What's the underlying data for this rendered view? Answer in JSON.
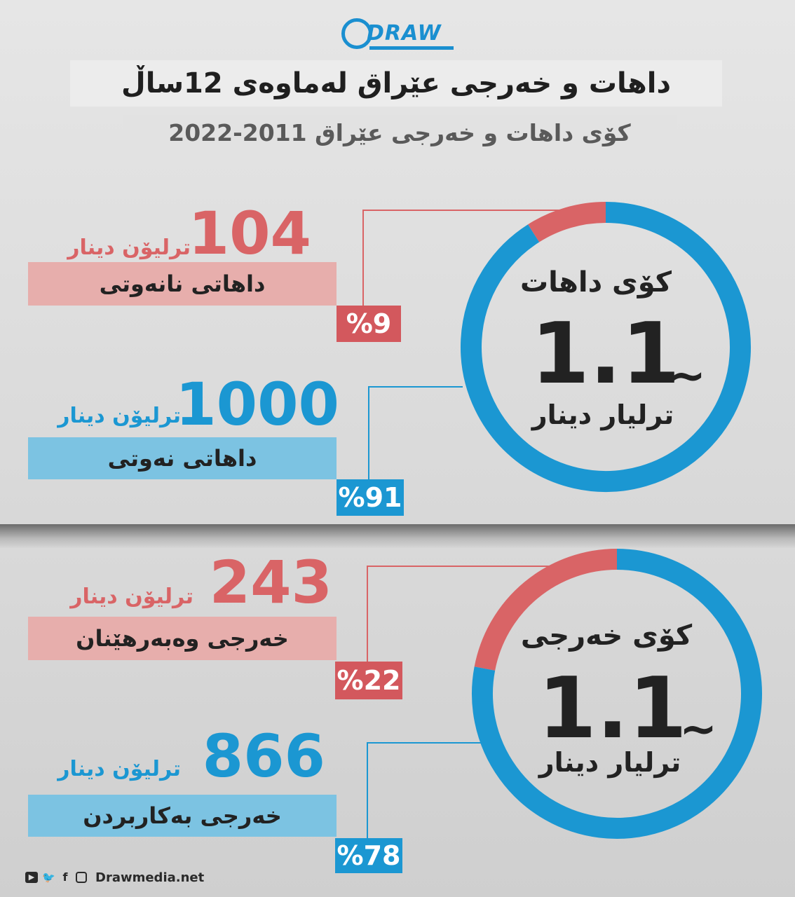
{
  "brand": {
    "logo_text": "DRAW",
    "website": "Drawmedia.net"
  },
  "header": {
    "title": "داهات و خەرجی عێراق لەماوەی 12ساڵ",
    "subtitle": "کۆی داهات و خەرجی عێراق 2011-2022"
  },
  "revenue": {
    "center_title": "کۆی داهات",
    "center_value": "1.1",
    "center_prefix": "~",
    "center_unit": "ترلیار دینار",
    "items": [
      {
        "value": "104",
        "unit": "ترلیۆن دینار",
        "label": "داهاتی نانەوتی",
        "percent": "%9"
      },
      {
        "value": "1000",
        "unit": "ترلیۆن دینار",
        "label": "داهاتی نەوتی",
        "percent": "%91"
      }
    ]
  },
  "expense": {
    "center_title": "کۆی خەرجی",
    "center_value": "1.1",
    "center_prefix": "~",
    "center_unit": "ترلیار دینار",
    "items": [
      {
        "value": "243",
        "unit": "ترلیۆن دینار",
        "label": "خەرجی وەبەرهێنان",
        "percent": "%22"
      },
      {
        "value": "866",
        "unit": "ترلیۆن دینار",
        "label": "خەرجی بەکاربردن",
        "percent": "%78"
      }
    ]
  },
  "colors": {
    "red": "#d96466",
    "blue": "#1b97d2",
    "red_bar": "#e7aeac",
    "blue_bar": "#7cc3e2"
  },
  "social_icons": [
    "youtube-icon",
    "twitter-icon",
    "facebook-icon",
    "instagram-icon"
  ],
  "chart_data": [
    {
      "type": "pie",
      "title": "کۆی داهات",
      "categories": [
        "داهاتی نانەوتی",
        "داهاتی نەوتی"
      ],
      "values": [
        9,
        91
      ],
      "amounts": [
        104,
        1000
      ]
    },
    {
      "type": "pie",
      "title": "کۆی خەرجی",
      "categories": [
        "خەرجی وەبەرهێنان",
        "خەرجی بەکاربردن"
      ],
      "values": [
        22,
        78
      ],
      "amounts": [
        243,
        866
      ]
    }
  ]
}
